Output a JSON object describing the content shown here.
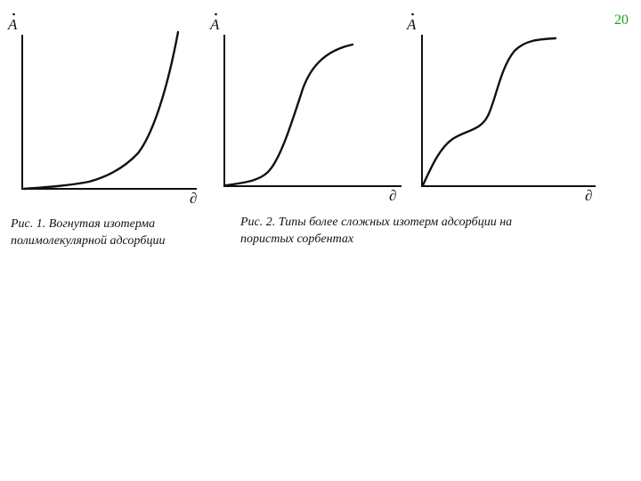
{
  "page_number": "20",
  "colors": {
    "page_number": "#1aa51a",
    "ink": "#111111"
  },
  "axes": {
    "y_label": "A",
    "x_label": "∂"
  },
  "figure_1": {
    "caption_line1": "Рис. 1. Вогнутая изотерма",
    "caption_line2": "полимолекулярной адсорбции"
  },
  "figure_2": {
    "caption_line1": "Рис. 2. Типы более сложных изотерм адсорбции на",
    "caption_line2": "пористых сорбентах"
  }
}
